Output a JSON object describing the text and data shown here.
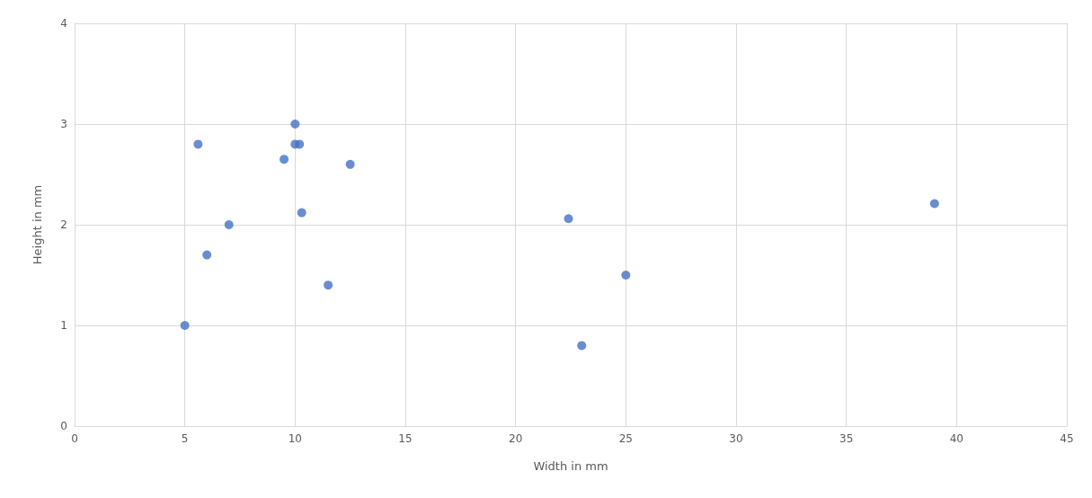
{
  "chart_data": {
    "type": "scatter",
    "xlabel": "Width in mm",
    "ylabel": "Height in mm",
    "x": [
      5,
      5.6,
      6,
      7,
      9.5,
      10,
      10,
      10.2,
      10.3,
      11.5,
      12.5,
      22.4,
      23,
      25,
      39
    ],
    "values": [
      1,
      2.8,
      1.7,
      2,
      2.65,
      3,
      2.8,
      2.8,
      2.12,
      1.4,
      2.6,
      2.06,
      0.8,
      1.5,
      2.21
    ],
    "color": "#4472c4",
    "marker": "circle",
    "xlim": [
      0,
      45
    ],
    "xticks": [
      0,
      5,
      10,
      15,
      20,
      25,
      30,
      35,
      40,
      45
    ],
    "ylim": [
      0,
      4
    ],
    "yticks": [
      0,
      1,
      2,
      3,
      4
    ],
    "grid": true
  }
}
